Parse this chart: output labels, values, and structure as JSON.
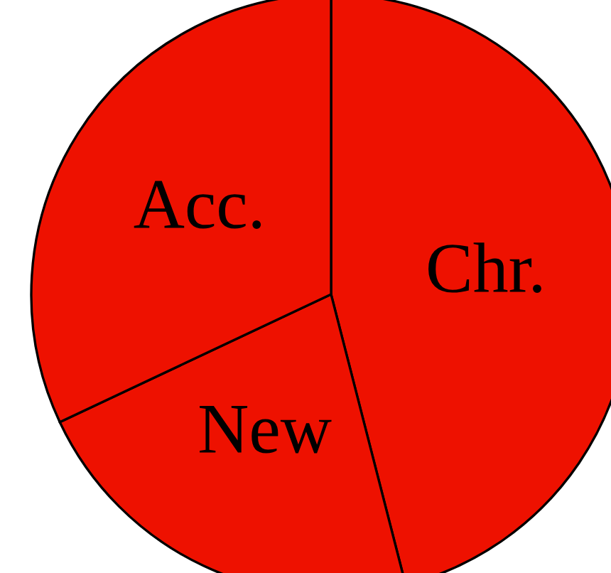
{
  "chart_data": {
    "type": "pie",
    "categories": [
      "Chr.",
      "New",
      "Acc."
    ],
    "values": [
      46,
      22,
      32
    ],
    "colors": [
      "#ee1100",
      "#ee1100",
      "#ee1100"
    ]
  }
}
